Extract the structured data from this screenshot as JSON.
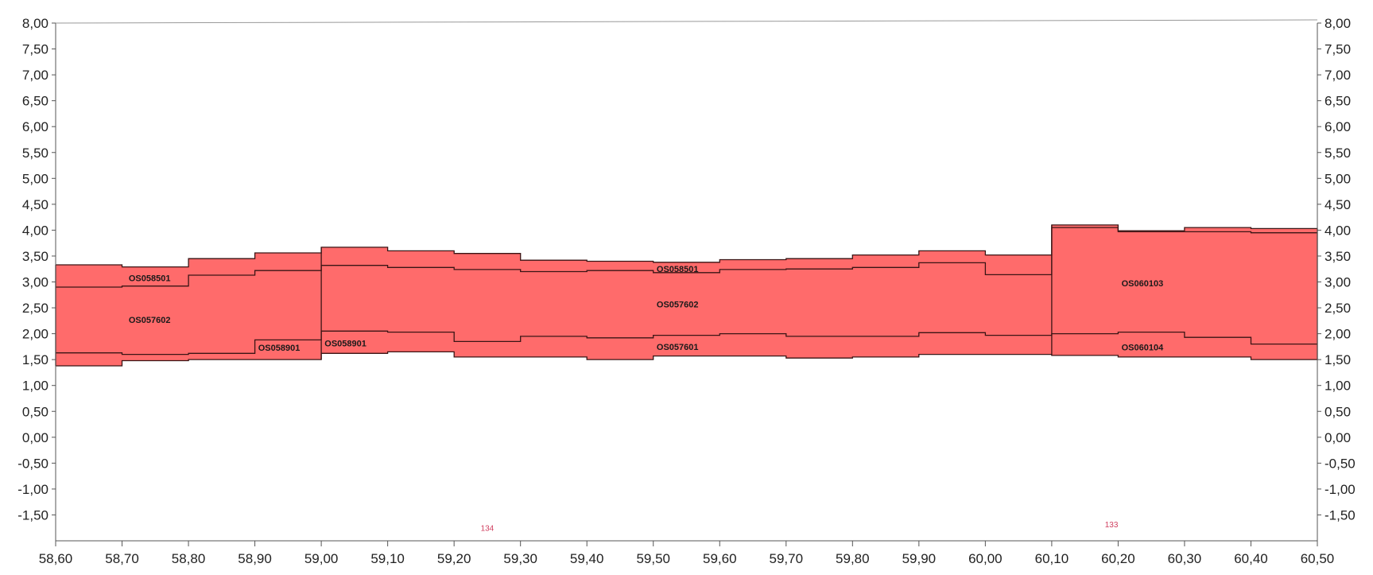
{
  "chart_data": {
    "type": "area",
    "title": "",
    "xlabel": "",
    "ylabel": "",
    "xlim": [
      58.6,
      60.5
    ],
    "ylim": [
      -2.0,
      8.0
    ],
    "grid": false,
    "legend": "none",
    "fill_color": "#ff6b6b",
    "line_color": "#3a1515",
    "x_ticks": [
      "58,60",
      "58,70",
      "58,80",
      "58,90",
      "59,00",
      "59,10",
      "59,20",
      "59,30",
      "59,40",
      "59,50",
      "59,60",
      "59,70",
      "59,80",
      "59,90",
      "60,00",
      "60,10",
      "60,20",
      "60,30",
      "60,40",
      "60,50"
    ],
    "y_ticks": [
      "8,00",
      "7,50",
      "7,00",
      "6,50",
      "6,00",
      "5,50",
      "5,00",
      "4,50",
      "4,00",
      "3,50",
      "3,00",
      "2,50",
      "2,00",
      "1,50",
      "1,00",
      "0,50",
      "0,00",
      "-0,50",
      "-1,00",
      "-1,50"
    ],
    "y_tick_values": [
      8.0,
      7.5,
      7.0,
      6.5,
      6.0,
      5.5,
      5.0,
      4.5,
      4.0,
      3.5,
      3.0,
      2.5,
      2.0,
      1.5,
      1.0,
      0.5,
      0.0,
      -0.5,
      -1.0,
      -1.5
    ],
    "steps": [
      {
        "x0": 58.6,
        "x1": 58.7,
        "top": 3.33,
        "m1": 2.9,
        "m2": 1.63,
        "bottom": 1.38
      },
      {
        "x0": 58.7,
        "x1": 58.8,
        "top": 3.29,
        "m1": 2.92,
        "m2": 1.6,
        "bottom": 1.48
      },
      {
        "x0": 58.8,
        "x1": 58.9,
        "top": 3.45,
        "m1": 3.13,
        "m2": 1.62,
        "bottom": 1.5
      },
      {
        "x0": 58.9,
        "x1": 59.0,
        "top": 3.56,
        "m1": 3.22,
        "m2": 1.88,
        "bottom": 1.5
      },
      {
        "x0": 59.0,
        "x1": 59.1,
        "top": 3.67,
        "m1": 3.32,
        "m2": 2.05,
        "bottom": 1.62
      },
      {
        "x0": 59.1,
        "x1": 59.2,
        "top": 3.6,
        "m1": 3.28,
        "m2": 2.03,
        "bottom": 1.65
      },
      {
        "x0": 59.2,
        "x1": 59.3,
        "top": 3.55,
        "m1": 3.24,
        "m2": 1.85,
        "bottom": 1.55
      },
      {
        "x0": 59.3,
        "x1": 59.4,
        "top": 3.42,
        "m1": 3.2,
        "m2": 1.95,
        "bottom": 1.55
      },
      {
        "x0": 59.4,
        "x1": 59.5,
        "top": 3.4,
        "m1": 3.22,
        "m2": 1.92,
        "bottom": 1.5
      },
      {
        "x0": 59.5,
        "x1": 59.6,
        "top": 3.38,
        "m1": 3.18,
        "m2": 1.97,
        "bottom": 1.57
      },
      {
        "x0": 59.6,
        "x1": 59.7,
        "top": 3.43,
        "m1": 3.24,
        "m2": 2.0,
        "bottom": 1.57
      },
      {
        "x0": 59.7,
        "x1": 59.8,
        "top": 3.45,
        "m1": 3.25,
        "m2": 1.95,
        "bottom": 1.53
      },
      {
        "x0": 59.8,
        "x1": 59.9,
        "top": 3.52,
        "m1": 3.28,
        "m2": 1.95,
        "bottom": 1.55
      },
      {
        "x0": 59.9,
        "x1": 60.0,
        "top": 3.6,
        "m1": 3.37,
        "m2": 2.02,
        "bottom": 1.6
      },
      {
        "x0": 60.0,
        "x1": 60.1,
        "top": 3.52,
        "m1": 3.14,
        "m2": 1.97,
        "bottom": 1.6
      },
      {
        "x0": 60.1,
        "x1": 60.2,
        "top": 4.1,
        "m1": 4.05,
        "m2": 2.0,
        "bottom": 1.58
      },
      {
        "x0": 60.2,
        "x1": 60.3,
        "top": 3.99,
        "m1": 3.97,
        "m2": 2.03,
        "bottom": 1.55
      },
      {
        "x0": 60.3,
        "x1": 60.4,
        "top": 4.05,
        "m1": 3.97,
        "m2": 1.93,
        "bottom": 1.55
      },
      {
        "x0": 60.4,
        "x1": 60.5,
        "top": 4.03,
        "m1": 3.95,
        "m2": 1.8,
        "bottom": 1.5
      }
    ],
    "section_boundaries": [
      59.0,
      60.1
    ],
    "annotations": [
      {
        "text": "OS058501",
        "x": 58.71,
        "y": 3.08
      },
      {
        "text": "OS057602",
        "x": 58.71,
        "y": 2.27
      },
      {
        "text": "OS058901",
        "x": 58.905,
        "y": 1.73
      },
      {
        "text": "OS058901",
        "x": 59.005,
        "y": 1.82
      },
      {
        "text": "OS058501",
        "x": 59.505,
        "y": 3.25
      },
      {
        "text": "OS057602",
        "x": 59.505,
        "y": 2.57
      },
      {
        "text": "OS057601",
        "x": 59.505,
        "y": 1.75
      },
      {
        "text": "OS060103",
        "x": 60.205,
        "y": 2.98
      },
      {
        "text": "OS060104",
        "x": 60.205,
        "y": 1.74
      }
    ],
    "markers": [
      {
        "text": "134",
        "x": 59.25,
        "y": -1.75
      },
      {
        "text": "133",
        "x": 60.19,
        "y": -1.68
      }
    ]
  }
}
